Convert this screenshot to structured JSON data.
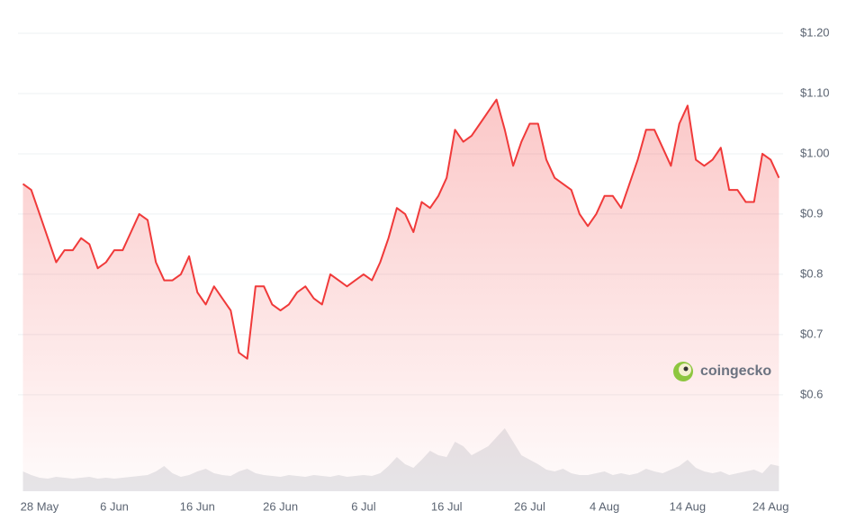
{
  "chart_data": {
    "type": "line",
    "watermark": "coingecko",
    "categories": [
      null,
      null,
      "28 May",
      null,
      null,
      null,
      null,
      null,
      null,
      null,
      null,
      "6 Jun",
      null,
      null,
      null,
      null,
      null,
      null,
      null,
      null,
      null,
      "16 Jun",
      null,
      null,
      null,
      null,
      null,
      null,
      null,
      null,
      null,
      "26 Jun",
      null,
      null,
      null,
      null,
      null,
      null,
      null,
      null,
      null,
      "6 Jul",
      null,
      null,
      null,
      null,
      null,
      null,
      null,
      null,
      null,
      "16 Jul",
      null,
      null,
      null,
      null,
      null,
      null,
      null,
      null,
      null,
      "26 Jul",
      null,
      null,
      null,
      null,
      null,
      null,
      null,
      null,
      "4 Aug",
      null,
      null,
      null,
      null,
      null,
      null,
      null,
      null,
      null,
      "14 Aug",
      null,
      null,
      null,
      null,
      null,
      null,
      null,
      null,
      null,
      "24 Aug",
      null
    ],
    "series": [
      {
        "color": "#f03a3a",
        "values": [
          0.95,
          0.94,
          0.9,
          0.86,
          0.82,
          0.84,
          0.84,
          0.86,
          0.85,
          0.81,
          0.82,
          0.84,
          0.84,
          0.87,
          0.9,
          0.89,
          0.82,
          0.79,
          0.79,
          0.8,
          0.83,
          0.77,
          0.75,
          0.78,
          0.76,
          0.74,
          0.67,
          0.66,
          0.78,
          0.78,
          0.75,
          0.74,
          0.75,
          0.77,
          0.78,
          0.76,
          0.75,
          0.8,
          0.79,
          0.78,
          0.79,
          0.8,
          0.79,
          0.82,
          0.86,
          0.91,
          0.9,
          0.87,
          0.92,
          0.91,
          0.93,
          0.96,
          1.04,
          1.02,
          1.03,
          1.05,
          1.07,
          1.09,
          1.04,
          0.98,
          1.02,
          1.05,
          1.05,
          0.99,
          0.96,
          0.95,
          0.94,
          0.9,
          0.88,
          0.9,
          0.93,
          0.93,
          0.91,
          0.95,
          0.99,
          1.04,
          1.04,
          1.01,
          0.98,
          1.05,
          1.08,
          0.99,
          0.98,
          0.99,
          1.01,
          0.94,
          0.94,
          0.92,
          0.92,
          1.0,
          0.99,
          0.96
        ]
      },
      {
        "color": "#e6e8eb",
        "axis": "y2",
        "values": [
          22,
          18,
          15,
          14,
          16,
          15,
          14,
          15,
          16,
          14,
          15,
          14,
          15,
          16,
          17,
          18,
          22,
          28,
          20,
          16,
          18,
          22,
          25,
          20,
          18,
          17,
          22,
          25,
          20,
          18,
          17,
          16,
          18,
          17,
          16,
          18,
          17,
          16,
          18,
          16,
          17,
          18,
          17,
          20,
          28,
          38,
          30,
          26,
          35,
          45,
          40,
          38,
          55,
          50,
          40,
          45,
          50,
          60,
          70,
          55,
          40,
          35,
          30,
          24,
          22,
          25,
          20,
          18,
          18,
          20,
          22,
          18,
          20,
          18,
          20,
          25,
          22,
          20,
          24,
          28,
          35,
          26,
          22,
          20,
          22,
          18,
          20,
          22,
          24,
          20,
          30,
          28
        ]
      }
    ],
    "ylim": [
      0.44,
      1.2
    ],
    "y2lim": [
      0,
      100
    ],
    "yticks": [
      {
        "value": 0.6,
        "label": "$0.6"
      },
      {
        "value": 0.7,
        "label": "$0.7"
      },
      {
        "value": 0.8,
        "label": "$0.8"
      },
      {
        "value": 0.9,
        "label": "$0.9"
      },
      {
        "value": 1.0,
        "label": "$1.00"
      },
      {
        "value": 1.1,
        "label": "$1.10"
      },
      {
        "value": 1.2,
        "label": "$1.20"
      }
    ],
    "grid": true
  }
}
